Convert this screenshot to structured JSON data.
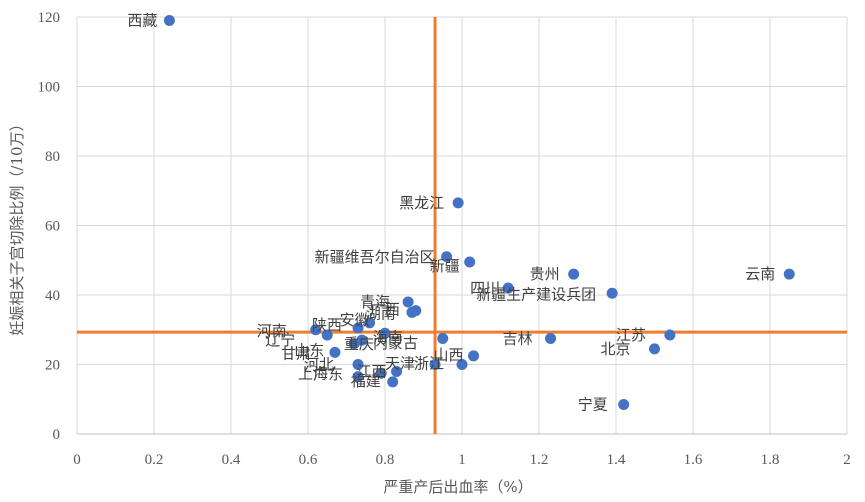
{
  "chart_data": {
    "type": "scatter",
    "title": "",
    "xlabel": "严重产后出血率（%）",
    "ylabel": "妊娠相关子宫切除比例（/10万）",
    "xlim": [
      0,
      2
    ],
    "ylim": [
      0,
      120
    ],
    "x_ticks": [
      0,
      0.2,
      0.4,
      0.6,
      0.8,
      1,
      1.2,
      1.4,
      1.6,
      1.8,
      2
    ],
    "y_ticks": [
      0,
      20,
      40,
      60,
      80,
      100,
      120
    ],
    "grid": true,
    "legend": "none",
    "reference_lines": {
      "x": 0.93,
      "y": 29.3
    },
    "colors": {
      "points": "#4472c4",
      "reference": "#ed7d31",
      "grid": "#d9d9d9"
    },
    "points": [
      {
        "label": "西藏",
        "x": 0.24,
        "y": 119
      },
      {
        "label": "黑龙江",
        "x": 0.99,
        "y": 66.5
      },
      {
        "label": "新疆维吾尔自治区",
        "x": 0.96,
        "y": 51
      },
      {
        "label": "新疆",
        "x": 1.02,
        "y": 49.5
      },
      {
        "label": "贵州",
        "x": 1.29,
        "y": 46
      },
      {
        "label": "云南",
        "x": 1.85,
        "y": 46
      },
      {
        "label": "四川",
        "x": 1.12,
        "y": 42
      },
      {
        "label": "新疆生产建设兵团",
        "x": 1.39,
        "y": 40.5
      },
      {
        "label": "青海",
        "x": 0.86,
        "y": 38
      },
      {
        "label": "广西",
        "x": 0.87,
        "y": 35
      },
      {
        "label": "湖南",
        "x": 0.88,
        "y": 35.5
      },
      {
        "label": "安徽",
        "x": 0.76,
        "y": 32
      },
      {
        "label": "陕西",
        "x": 0.73,
        "y": 30.5
      },
      {
        "label": "河南",
        "x": 0.62,
        "y": 30
      },
      {
        "label": "辽宁",
        "x": 0.65,
        "y": 28.5
      },
      {
        "label": "内蒙古",
        "x": 0.8,
        "y": 29
      },
      {
        "label": "重庆",
        "x": 0.74,
        "y": 27
      },
      {
        "label": "山东",
        "x": 0.72,
        "y": 26
      },
      {
        "label": "海南",
        "x": 0.95,
        "y": 27.5
      },
      {
        "label": "吉林",
        "x": 1.23,
        "y": 27.5
      },
      {
        "label": "江苏",
        "x": 1.54,
        "y": 28.5
      },
      {
        "label": "北京",
        "x": 1.5,
        "y": 24.5
      },
      {
        "label": "甘肃",
        "x": 0.67,
        "y": 23.5
      },
      {
        "label": "山西",
        "x": 1.03,
        "y": 22.5
      },
      {
        "label": "天津",
        "x": 0.93,
        "y": 20
      },
      {
        "label": "浙江",
        "x": 1.0,
        "y": 20
      },
      {
        "label": "河北",
        "x": 0.73,
        "y": 20
      },
      {
        "label": "广东",
        "x": 0.79,
        "y": 17.5
      },
      {
        "label": "江西",
        "x": 0.83,
        "y": 18
      },
      {
        "label": "上海",
        "x": 0.73,
        "y": 16.5
      },
      {
        "label": "福建",
        "x": 0.82,
        "y": 15
      },
      {
        "label": "宁夏",
        "x": 1.42,
        "y": 8.5
      }
    ]
  }
}
